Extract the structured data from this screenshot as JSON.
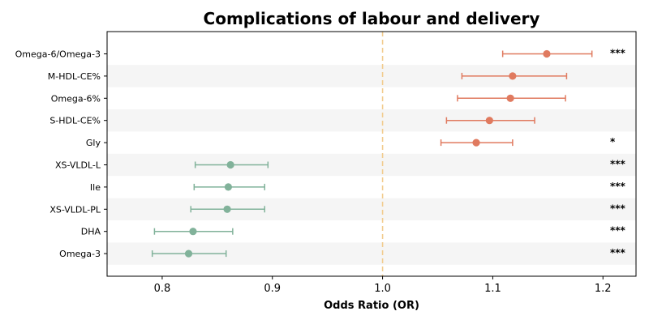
{
  "chart_data": {
    "type": "forest",
    "title": "Complications of labour and delivery",
    "xlabel": "Odds Ratio (OR)",
    "xlim": [
      0.75,
      1.23
    ],
    "xticks": [
      0.8,
      0.9,
      1.0,
      1.1,
      1.2
    ],
    "xtick_labels": [
      "0.8",
      "0.9",
      "1.0",
      "1.1",
      "1.2"
    ],
    "reference_line": 1.0,
    "alternating_row_shading": true,
    "colors": {
      "increased": "#e07a5f",
      "decreased": "#81b29a",
      "reference": "#f2cc8f",
      "stripe": "#f5f5f5"
    },
    "rows": [
      {
        "label": "Omega-6/Omega-3",
        "or": 1.149,
        "lo": 1.109,
        "hi": 1.19,
        "sig": "***"
      },
      {
        "label": "M-HDL-CE%",
        "or": 1.118,
        "lo": 1.072,
        "hi": 1.167,
        "sig": ""
      },
      {
        "label": "Omega-6%",
        "or": 1.116,
        "lo": 1.068,
        "hi": 1.166,
        "sig": ""
      },
      {
        "label": "S-HDL-CE%",
        "or": 1.097,
        "lo": 1.058,
        "hi": 1.138,
        "sig": ""
      },
      {
        "label": "Gly",
        "or": 1.085,
        "lo": 1.053,
        "hi": 1.118,
        "sig": "*"
      },
      {
        "label": "XS-VLDL-L",
        "or": 0.862,
        "lo": 0.83,
        "hi": 0.896,
        "sig": "***"
      },
      {
        "label": "Ile",
        "or": 0.86,
        "lo": 0.829,
        "hi": 0.893,
        "sig": "***"
      },
      {
        "label": "XS-VLDL-PL",
        "or": 0.859,
        "lo": 0.826,
        "hi": 0.893,
        "sig": "***"
      },
      {
        "label": "DHA",
        "or": 0.828,
        "lo": 0.793,
        "hi": 0.864,
        "sig": "***"
      },
      {
        "label": "Omega-3",
        "or": 0.824,
        "lo": 0.791,
        "hi": 0.858,
        "sig": "***"
      }
    ]
  }
}
